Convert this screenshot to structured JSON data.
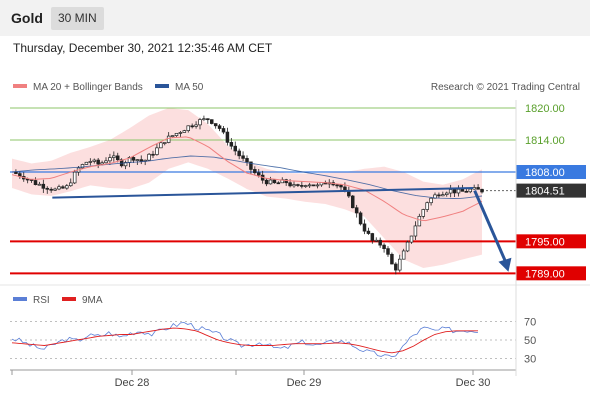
{
  "header": {
    "symbol": "Gold",
    "timeframe": "30 MIN",
    "datetime": "Thursday, December 30, 2021 12:35:46 AM CET"
  },
  "legend": {
    "ma20": {
      "label": "MA 20 + Bollinger Bands",
      "color": "#f08080"
    },
    "ma50": {
      "label": "MA 50",
      "color": "#2a5599"
    },
    "credit": "Research © 2021 Trading Central"
  },
  "rsi_legend": {
    "rsi": {
      "label": "RSI",
      "color": "#5b7fd6"
    },
    "ma9": {
      "label": "9MA",
      "color": "#e02020"
    }
  },
  "colors": {
    "support": "#e00000",
    "resistance": "#8cc66a",
    "pivot": "#3a7ae0",
    "current": "#333333",
    "arrow": "#2a5599"
  },
  "chart_data": [
    {
      "type": "candlestick",
      "x_ticks": [
        "Dec 28",
        "Dec 29",
        "Dec 30"
      ],
      "levels": [
        {
          "value": 1820.0,
          "label": "1820.00",
          "kind": "resistance"
        },
        {
          "value": 1814.0,
          "label": "1814.00",
          "kind": "resistance"
        },
        {
          "value": 1808.0,
          "label": "1808.00",
          "kind": "pivot"
        },
        {
          "value": 1804.51,
          "label": "1804.51",
          "kind": "current"
        },
        {
          "value": 1795.0,
          "label": "1795.00",
          "kind": "support"
        },
        {
          "value": 1789.0,
          "label": "1789.00",
          "kind": "support"
        }
      ],
      "price_path": [
        1808.0,
        1807.2,
        1806.0,
        1805.3,
        1804.6,
        1805.1,
        1808.5,
        1810.2,
        1809.4,
        1811.0,
        1809.6,
        1810.8,
        1809.9,
        1811.8,
        1814.0,
        1815.2,
        1816.4,
        1817.5,
        1818.0,
        1816.2,
        1813.0,
        1810.6,
        1808.2,
        1806.4,
        1805.8,
        1806.2,
        1805.0,
        1806.0,
        1805.3,
        1806.4,
        1805.5,
        1802.5,
        1798.0,
        1795.0,
        1794.2,
        1789.5,
        1793.5,
        1798.5,
        1802.5,
        1804.0,
        1804.6,
        1804.2,
        1804.7,
        1804.51
      ],
      "ma50_path": [
        1808.0,
        1808.4,
        1808.6,
        1808.9,
        1809.3,
        1809.7,
        1810.0,
        1810.6,
        1811.0,
        1810.8,
        1810.1,
        1809.4,
        1808.8,
        1808.0,
        1807.3,
        1806.5,
        1805.6,
        1804.5,
        1803.6,
        1803.1,
        1803.0,
        1803.5
      ],
      "ma20_path": [
        1807.5,
        1806.6,
        1806.8,
        1808.0,
        1809.0,
        1809.6,
        1810.6,
        1812.6,
        1814.4,
        1814.6,
        1812.8,
        1810.0,
        1807.8,
        1806.8,
        1806.4,
        1806.2,
        1806.0,
        1805.6,
        1804.6,
        1802.5,
        1800.0,
        1798.8,
        1799.6,
        1800.6,
        1802.5
      ],
      "bb_upper": [
        1810.5,
        1809.6,
        1810.1,
        1811.6,
        1812.7,
        1814.0,
        1816.2,
        1818.6,
        1820.0,
        1819.6,
        1817.0,
        1813.0,
        1810.0,
        1808.6,
        1807.8,
        1807.7,
        1807.8,
        1808.0,
        1808.6,
        1809.0,
        1808.0,
        1806.2,
        1805.6,
        1806.6,
        1808.5
      ],
      "bb_lower": [
        1805.0,
        1803.8,
        1803.5,
        1804.4,
        1805.5,
        1805.0,
        1804.8,
        1806.0,
        1808.6,
        1809.8,
        1808.6,
        1806.8,
        1804.8,
        1803.4,
        1803.0,
        1802.4,
        1802.0,
        1801.0,
        1799.6,
        1795.6,
        1791.6,
        1790.0,
        1790.6,
        1791.6,
        1792.5
      ],
      "trendline": [
        {
          "x": 0.08,
          "y": 1803.2
        },
        {
          "x": 0.915,
          "y": 1805.0
        }
      ],
      "forecast": [
        {
          "x": 0.918,
          "y": 1804.51
        },
        {
          "x": 0.985,
          "y": 1789.3
        }
      ]
    },
    {
      "type": "line",
      "title": "RSI",
      "y_ticks": [
        70,
        50,
        30
      ],
      "rsi_path": [
        52,
        48,
        43,
        40,
        46,
        51,
        49,
        55,
        54,
        58,
        53,
        58,
        60,
        56,
        62,
        66,
        69,
        64,
        60,
        56,
        50,
        44,
        45,
        48,
        42,
        40,
        45,
        48,
        44,
        46,
        50,
        47,
        41,
        36,
        34,
        30,
        42,
        55,
        63,
        60,
        62,
        60,
        61,
        60
      ],
      "ma9_path": [
        47,
        46,
        45,
        44,
        46,
        48,
        50,
        52,
        54,
        55,
        56,
        56,
        58,
        60,
        62,
        63,
        62,
        60,
        55,
        50,
        47,
        45,
        44,
        44,
        44,
        45,
        46,
        46,
        46,
        46,
        47,
        46,
        44,
        41,
        38,
        36,
        38,
        43,
        50,
        56,
        59,
        60,
        60,
        60
      ]
    }
  ]
}
